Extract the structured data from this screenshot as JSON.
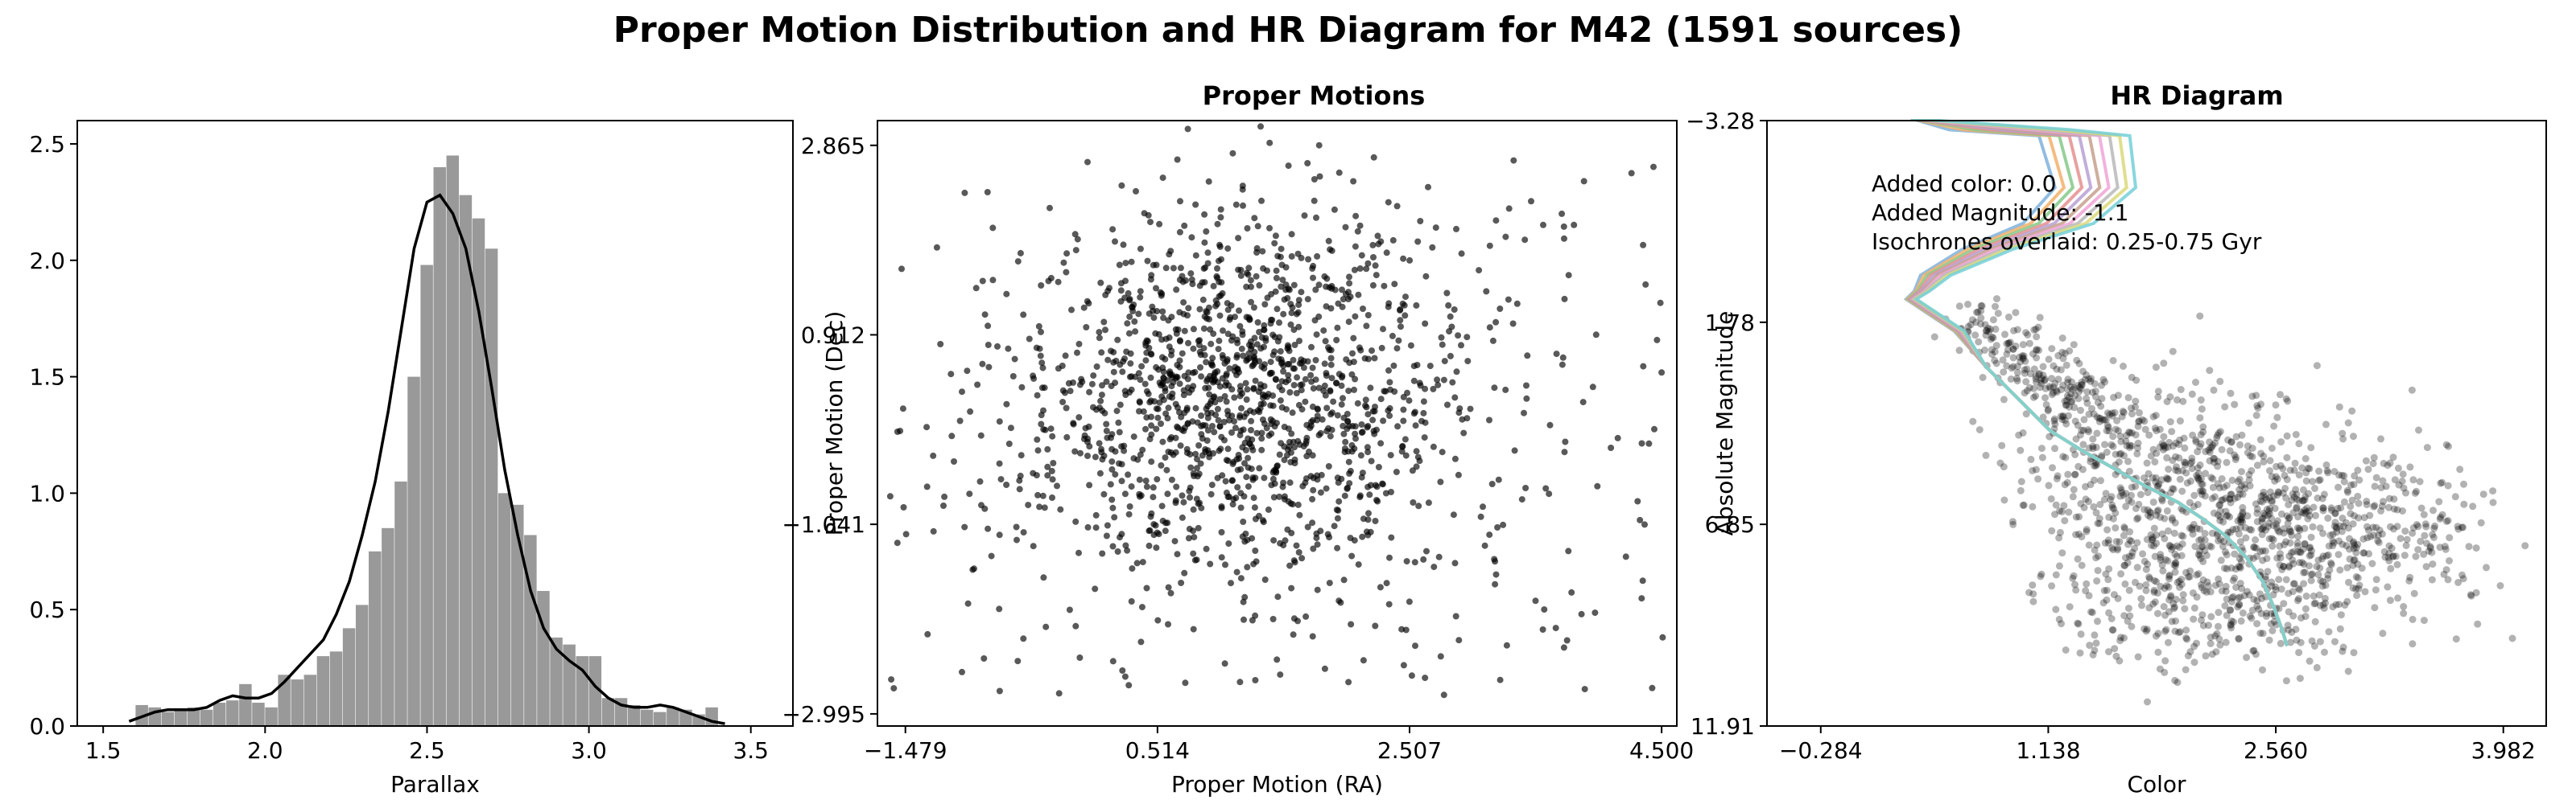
{
  "suptitle": "Proper Motion Distribution and HR Diagram for M42 (1591 sources)",
  "chart_data": [
    {
      "type": "bar",
      "subtype": "histogram_with_kde",
      "title": "",
      "xlabel": "Parallax",
      "ylabel": "",
      "xlim": [
        1.42,
        3.63
      ],
      "ylim": [
        0,
        2.6
      ],
      "xticks": [
        "1.5",
        "2.0",
        "2.5",
        "3.0",
        "3.5"
      ],
      "yticks": [
        "0.0",
        "0.5",
        "1.0",
        "1.5",
        "2.0",
        "2.5"
      ],
      "bin_edges": [
        1.6,
        1.64,
        1.68,
        1.72,
        1.76,
        1.8,
        1.84,
        1.88,
        1.92,
        1.96,
        2.0,
        2.04,
        2.08,
        2.12,
        2.16,
        2.2,
        2.24,
        2.28,
        2.32,
        2.36,
        2.4,
        2.44,
        2.48,
        2.52,
        2.56,
        2.6,
        2.64,
        2.68,
        2.72,
        2.76,
        2.8,
        2.84,
        2.88,
        2.92,
        2.96,
        3.0,
        3.04,
        3.08,
        3.12,
        3.16,
        3.2,
        3.24,
        3.28,
        3.32,
        3.36,
        3.4
      ],
      "density": [
        0.09,
        0.08,
        0.06,
        0.07,
        0.08,
        0.07,
        0.1,
        0.11,
        0.18,
        0.1,
        0.08,
        0.22,
        0.2,
        0.22,
        0.3,
        0.32,
        0.42,
        0.52,
        0.75,
        0.85,
        1.05,
        1.5,
        1.98,
        2.4,
        2.45,
        2.28,
        2.18,
        2.05,
        1.0,
        0.95,
        0.82,
        0.58,
        0.38,
        0.35,
        0.3,
        0.3,
        0.12,
        0.12,
        0.09,
        0.07,
        0.06,
        0.08,
        0.07,
        0.05,
        0.08
      ],
      "bar_color": "#999999",
      "kde": {
        "x": [
          1.58,
          1.62,
          1.66,
          1.7,
          1.74,
          1.78,
          1.82,
          1.86,
          1.9,
          1.94,
          1.98,
          2.02,
          2.06,
          2.1,
          2.14,
          2.18,
          2.22,
          2.26,
          2.3,
          2.34,
          2.38,
          2.42,
          2.46,
          2.5,
          2.54,
          2.58,
          2.62,
          2.66,
          2.7,
          2.74,
          2.78,
          2.82,
          2.86,
          2.9,
          2.94,
          2.98,
          3.02,
          3.06,
          3.1,
          3.14,
          3.18,
          3.22,
          3.26,
          3.3,
          3.34,
          3.38,
          3.42
        ],
        "y": [
          0.02,
          0.04,
          0.06,
          0.07,
          0.07,
          0.07,
          0.08,
          0.11,
          0.13,
          0.12,
          0.12,
          0.14,
          0.19,
          0.25,
          0.31,
          0.37,
          0.48,
          0.62,
          0.82,
          1.05,
          1.35,
          1.7,
          2.05,
          2.25,
          2.28,
          2.2,
          2.05,
          1.78,
          1.45,
          1.1,
          0.82,
          0.58,
          0.42,
          0.33,
          0.28,
          0.24,
          0.17,
          0.12,
          0.09,
          0.08,
          0.08,
          0.09,
          0.08,
          0.06,
          0.04,
          0.02,
          0.01
        ],
        "color": "#000000"
      }
    },
    {
      "type": "scatter",
      "title": "Proper Motions",
      "xlabel": "Proper Motion (RA)",
      "ylabel": "Proper Motion (Dec)",
      "xlim": [
        -1.7,
        4.62
      ],
      "ylim": [
        -3.12,
        3.12
      ],
      "xticks": [
        -1.479,
        0.514,
        2.507,
        4.5
      ],
      "xtick_labels": [
        "−1.479",
        "0.514",
        "2.507",
        "4.500"
      ],
      "yticks": [
        -2.995,
        -1.041,
        0.912,
        2.865
      ],
      "ytick_labels": [
        "−2.995",
        "−1.041",
        "0.912",
        "2.865"
      ],
      "n_points": 1591,
      "center": [
        1.1,
        0.3
      ],
      "sigma": [
        0.85,
        0.9
      ],
      "color": "#000000",
      "alpha": 0.65
    },
    {
      "type": "scatter",
      "subtype": "hr_diagram_with_isochrones",
      "title": "HR Diagram",
      "xlabel": "Color",
      "ylabel": "Absolute Magnitude",
      "xlim": [
        -0.62,
        4.25
      ],
      "ylim": [
        11.91,
        -3.28
      ],
      "y_inverted": true,
      "xticks": [
        -0.284,
        1.138,
        2.56,
        3.982
      ],
      "xtick_labels": [
        "−0.284",
        "1.138",
        "2.560",
        "3.982"
      ],
      "yticks": [
        -3.28,
        1.78,
        6.85,
        11.91
      ],
      "ytick_labels": [
        "−3.28",
        "1.78",
        "6.85",
        "11.91"
      ],
      "n_points": 1591,
      "point_color": "#000000",
      "point_alpha": 0.3,
      "annotations": [
        "Added color: 0.0",
        "Added Magnitude: -1.1",
        "Isochrones overlaid: 0.25-0.75 Gyr"
      ],
      "isochrone_colors": [
        "#7fb2dc",
        "#f2b06b",
        "#86c98a",
        "#e58f8f",
        "#b7a0d4",
        "#c6a08c",
        "#f0a5d6",
        "#b8b8b8",
        "#d9d97a",
        "#74cfd8"
      ],
      "isochrone_main_track": {
        "x": [
          0.25,
          0.4,
          0.55,
          0.75,
          0.95,
          1.15,
          1.35,
          1.55,
          1.75,
          1.95,
          2.1,
          2.25,
          2.38,
          2.48,
          2.55,
          2.6,
          2.63
        ],
        "y": [
          1.2,
          1.6,
          2.0,
          2.9,
          3.7,
          4.5,
          5.0,
          5.45,
          5.9,
          6.3,
          6.7,
          7.15,
          7.7,
          8.3,
          8.95,
          9.5,
          9.9
        ]
      }
    }
  ]
}
